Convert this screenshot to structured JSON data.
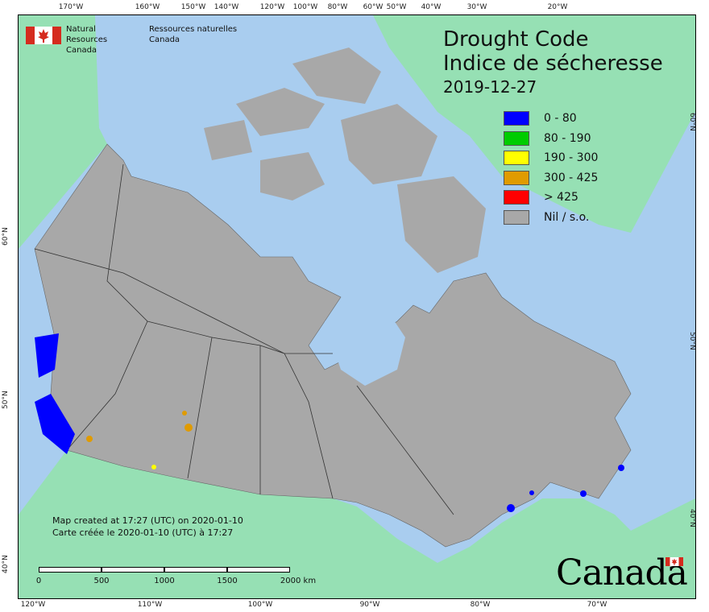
{
  "title": {
    "line1": "Drought Code",
    "line2": "Indice de sécheresse",
    "date": "2019-12-27"
  },
  "agency": {
    "name_en_1": "Natural Resources",
    "name_en_2": "Canada",
    "name_fr_1": "Ressources naturelles",
    "name_fr_2": "Canada"
  },
  "legend": [
    {
      "label": "0 - 80",
      "color": "#0000ff"
    },
    {
      "label": "80 - 190",
      "color": "#00cc00"
    },
    {
      "label": "190 - 300",
      "color": "#ffff00"
    },
    {
      "label": "300 - 425",
      "color": "#e09b00"
    },
    {
      "label": "> 425",
      "color": "#ff0000"
    },
    {
      "label": "Nil / s.o.",
      "color": "#a8a8a8"
    }
  ],
  "credit": {
    "line1": "Map created at 17:27 (UTC) on 2020-01-10",
    "line2": "Carte créée le 2020-01-10 (UTC) à 17:27"
  },
  "scale_bar": {
    "labels": [
      "0",
      "500",
      "1000",
      "1500",
      "2000 km"
    ]
  },
  "wordmark": "Canada",
  "graticule": {
    "top": [
      "170°W",
      "160°W",
      "150°W",
      "140°W",
      "120°W",
      "100°W",
      "80°W",
      "60°W",
      "50°W",
      "40°W",
      "30°W",
      "20°W"
    ],
    "bottom": [
      "120°W",
      "110°W",
      "100°W",
      "90°W",
      "80°W",
      "70°W"
    ],
    "left": [
      "60°N",
      "50°N",
      "40°N"
    ],
    "right": [
      "60°N",
      "50°N",
      "40°N"
    ]
  },
  "colors": {
    "water": "#a9cdef",
    "no_data_land": "#a8a8a8",
    "other_land": "#96e0b4"
  }
}
